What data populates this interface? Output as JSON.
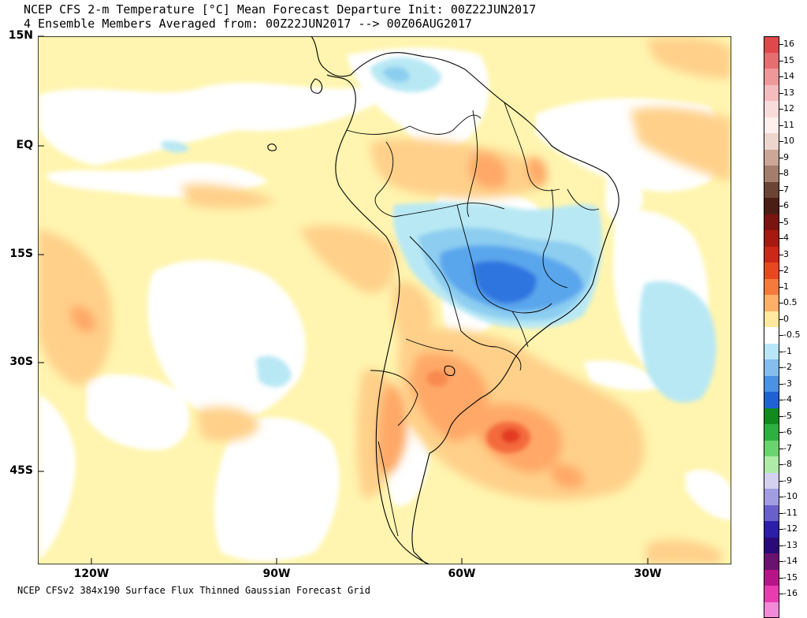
{
  "title": {
    "line1": "NCEP CFS 2-m Temperature [°C] Mean Forecast Departure Init: 00Z22JUN2017",
    "line2": "4 Ensemble Members Averaged from: 00Z22JUN2017 --> 00Z06AUG2017"
  },
  "footer": "NCEP CFSv2 384x190 Surface Flux Thinned Gaussian Forecast Grid",
  "map": {
    "region": "South America",
    "lat_labels": [
      "15N",
      "EQ",
      "15S",
      "30S",
      "45S"
    ],
    "lon_labels": [
      "120W",
      "90W",
      "60W",
      "30W"
    ],
    "palette": {
      "ocean_neutral": "#ffffff",
      "slight_warm": "#fff5b0",
      "warm": "#ffd08a",
      "warmer": "#ffa868",
      "hot": "#f46a3c",
      "hottest": "#e23a22",
      "slight_cool": "#b8e8f4",
      "cool": "#8ccdf0",
      "colder": "#5aa6ec",
      "coldest": "#2e74e0",
      "coast": "#000000"
    }
  },
  "legend": {
    "entries": [
      {
        "label": "16",
        "color": "#e0484c"
      },
      {
        "label": "15",
        "color": "#e76e70"
      },
      {
        "label": "14",
        "color": "#ee9899"
      },
      {
        "label": "13",
        "color": "#f4bcbc"
      },
      {
        "label": "12",
        "color": "#f8dcdb"
      },
      {
        "label": "11",
        "color": "#fff0ee"
      },
      {
        "label": "10",
        "color": "#ecd6ce"
      },
      {
        "label": "9",
        "color": "#caa796"
      },
      {
        "label": "8",
        "color": "#a37e6c"
      },
      {
        "label": "7",
        "color": "#6a4434"
      },
      {
        "label": "6",
        "color": "#4a1e14"
      },
      {
        "label": "5",
        "color": "#7a1410"
      },
      {
        "label": "4",
        "color": "#a61810"
      },
      {
        "label": "3",
        "color": "#cc2818"
      },
      {
        "label": "2",
        "color": "#e84820"
      },
      {
        "label": "1",
        "color": "#f67a3c"
      },
      {
        "label": "0.5",
        "color": "#ffb068"
      },
      {
        "label": "0",
        "color": "#ffe8a0"
      },
      {
        "label": "-0.5",
        "color": "#ffffff"
      },
      {
        "label": "-1",
        "color": "#b8e6f6"
      },
      {
        "label": "-2",
        "color": "#84bdee"
      },
      {
        "label": "-3",
        "color": "#4a92e4"
      },
      {
        "label": "-4",
        "color": "#1e62d6"
      },
      {
        "label": "-5",
        "color": "#108a1c"
      },
      {
        "label": "-6",
        "color": "#2eb040"
      },
      {
        "label": "-7",
        "color": "#6ad46e"
      },
      {
        "label": "-8",
        "color": "#b0eaa8"
      },
      {
        "label": "-9",
        "color": "#d4d0f0"
      },
      {
        "label": "-10",
        "color": "#a29ce2"
      },
      {
        "label": "-11",
        "color": "#6a60cc"
      },
      {
        "label": "-12",
        "color": "#2c1ea8"
      },
      {
        "label": "-13",
        "color": "#2a0a78"
      },
      {
        "label": "-14",
        "color": "#6a1270"
      },
      {
        "label": "-15",
        "color": "#b8148a"
      },
      {
        "label": "-16",
        "color": "#e83cb0"
      },
      {
        "label": "",
        "color": "#f28ad8"
      }
    ]
  }
}
